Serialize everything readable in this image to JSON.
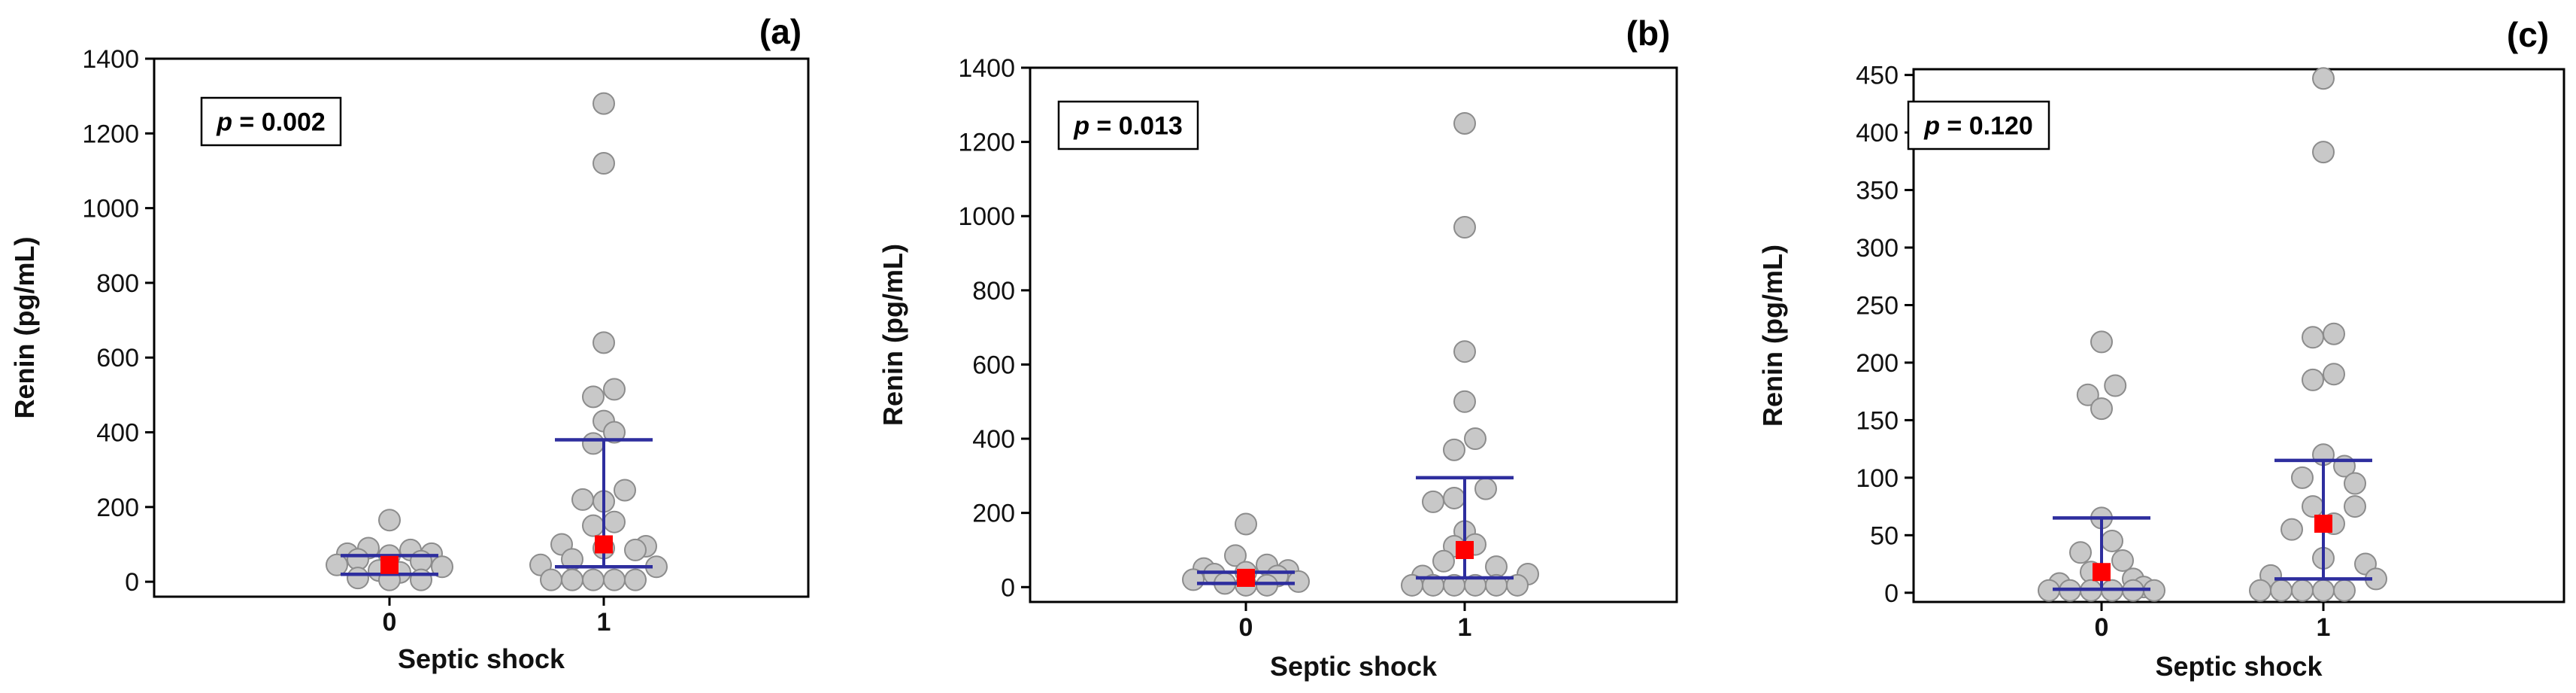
{
  "colors": {
    "point_fill": "#c8c8c8",
    "point_stroke": "#8c8c8c",
    "median_marker": "#ff0000",
    "whisker": "#2e2e9e",
    "axis": "#000000"
  },
  "chart_data": [
    {
      "type": "scatter",
      "panel_label": "(a)",
      "p_prefix": "p",
      "p_value": " = 0.002",
      "xlabel": "Septic shock",
      "ylabel": "Renin (pg/mL)",
      "categories": [
        "0",
        "1"
      ],
      "ylim": [
        -40,
        1400
      ],
      "yticks": [
        0,
        200,
        400,
        600,
        800,
        1000,
        1200,
        1400
      ],
      "groups": [
        {
          "name": "0",
          "median": 45,
          "q1": 20,
          "q3": 70,
          "lower": 20,
          "upper": 70,
          "points": [
            {
              "y": 165,
              "j": 0
            },
            {
              "y": 90,
              "j": -2
            },
            {
              "y": 85,
              "j": 2
            },
            {
              "y": 75,
              "j": -4
            },
            {
              "y": 75,
              "j": 4
            },
            {
              "y": 70,
              "j": 0
            },
            {
              "y": 60,
              "j": -3
            },
            {
              "y": 55,
              "j": 3
            },
            {
              "y": 45,
              "j": -5
            },
            {
              "y": 40,
              "j": 5
            },
            {
              "y": 30,
              "j": -1
            },
            {
              "y": 25,
              "j": 1
            },
            {
              "y": 10,
              "j": -3
            },
            {
              "y": 5,
              "j": 3
            },
            {
              "y": 5,
              "j": 0
            }
          ]
        },
        {
          "name": "1",
          "median": 100,
          "q1": 40,
          "q3": 380,
          "lower": 40,
          "upper": 380,
          "points": [
            {
              "y": 1280,
              "j": 0
            },
            {
              "y": 1120,
              "j": 0
            },
            {
              "y": 640,
              "j": 0
            },
            {
              "y": 515,
              "j": 1
            },
            {
              "y": 495,
              "j": -1
            },
            {
              "y": 430,
              "j": 0
            },
            {
              "y": 400,
              "j": 1
            },
            {
              "y": 370,
              "j": -1
            },
            {
              "y": 245,
              "j": 2
            },
            {
              "y": 220,
              "j": -2
            },
            {
              "y": 215,
              "j": 0
            },
            {
              "y": 160,
              "j": 1
            },
            {
              "y": 150,
              "j": -1
            },
            {
              "y": 100,
              "j": -4
            },
            {
              "y": 95,
              "j": 4
            },
            {
              "y": 90,
              "j": 0
            },
            {
              "y": 85,
              "j": 3
            },
            {
              "y": 60,
              "j": -3
            },
            {
              "y": 45,
              "j": -6
            },
            {
              "y": 40,
              "j": 5
            },
            {
              "y": 5,
              "j": -5
            },
            {
              "y": 5,
              "j": -3
            },
            {
              "y": 5,
              "j": -1
            },
            {
              "y": 5,
              "j": 1
            },
            {
              "y": 5,
              "j": 3
            }
          ]
        }
      ]
    },
    {
      "type": "scatter",
      "panel_label": "(b)",
      "p_prefix": "p",
      "p_value": " = 0.013",
      "xlabel": "Septic shock",
      "ylabel": "Renin (pg/mL)",
      "categories": [
        "0",
        "1"
      ],
      "ylim": [
        -40,
        1400
      ],
      "yticks": [
        0,
        200,
        400,
        600,
        800,
        1000,
        1200,
        1400
      ],
      "groups": [
        {
          "name": "0",
          "median": 25,
          "q1": 10,
          "q3": 40,
          "lower": 10,
          "upper": 40,
          "points": [
            {
              "y": 170,
              "j": 0
            },
            {
              "y": 85,
              "j": -1
            },
            {
              "y": 60,
              "j": 2
            },
            {
              "y": 50,
              "j": -4
            },
            {
              "y": 45,
              "j": 4
            },
            {
              "y": 40,
              "j": 0
            },
            {
              "y": 35,
              "j": -3
            },
            {
              "y": 30,
              "j": 3
            },
            {
              "y": 20,
              "j": -5
            },
            {
              "y": 15,
              "j": 5
            },
            {
              "y": 10,
              "j": -2
            },
            {
              "y": 5,
              "j": 2
            },
            {
              "y": 5,
              "j": 0
            }
          ]
        },
        {
          "name": "1",
          "median": 100,
          "q1": 25,
          "q3": 295,
          "lower": 25,
          "upper": 295,
          "points": [
            {
              "y": 1250,
              "j": 0
            },
            {
              "y": 970,
              "j": 0
            },
            {
              "y": 635,
              "j": 0
            },
            {
              "y": 500,
              "j": 0
            },
            {
              "y": 400,
              "j": 1
            },
            {
              "y": 370,
              "j": -1
            },
            {
              "y": 265,
              "j": 2
            },
            {
              "y": 240,
              "j": -1
            },
            {
              "y": 230,
              "j": -3
            },
            {
              "y": 150,
              "j": 0
            },
            {
              "y": 115,
              "j": 1
            },
            {
              "y": 110,
              "j": -1
            },
            {
              "y": 70,
              "j": -2
            },
            {
              "y": 55,
              "j": 3
            },
            {
              "y": 35,
              "j": 6
            },
            {
              "y": 30,
              "j": -4
            },
            {
              "y": 5,
              "j": -5
            },
            {
              "y": 5,
              "j": -3
            },
            {
              "y": 5,
              "j": -1
            },
            {
              "y": 5,
              "j": 1
            },
            {
              "y": 5,
              "j": 3
            },
            {
              "y": 5,
              "j": 5
            }
          ]
        }
      ]
    },
    {
      "type": "scatter",
      "panel_label": "(c)",
      "p_prefix": "p",
      "p_value": " = 0.120",
      "xlabel": "Septic shock",
      "ylabel": "Renin (pg/mL)",
      "categories": [
        "0",
        "1"
      ],
      "ylim": [
        -8,
        455
      ],
      "yticks": [
        0,
        50,
        100,
        150,
        200,
        250,
        300,
        350,
        400,
        450
      ],
      "groups": [
        {
          "name": "0",
          "median": 18,
          "q1": 3,
          "q3": 65,
          "lower": 3,
          "upper": 65,
          "points": [
            {
              "y": 218,
              "j": 0
            },
            {
              "y": 180,
              "j": 1.3
            },
            {
              "y": 172,
              "j": -1.3
            },
            {
              "y": 160,
              "j": 0
            },
            {
              "y": 65,
              "j": 0
            },
            {
              "y": 45,
              "j": 1
            },
            {
              "y": 35,
              "j": -2
            },
            {
              "y": 28,
              "j": 2
            },
            {
              "y": 18,
              "j": -1
            },
            {
              "y": 12,
              "j": 3
            },
            {
              "y": 8,
              "j": -4
            },
            {
              "y": 5,
              "j": 4
            },
            {
              "y": 2,
              "j": -5
            },
            {
              "y": 2,
              "j": -3
            },
            {
              "y": 2,
              "j": -1
            },
            {
              "y": 2,
              "j": 1
            },
            {
              "y": 2,
              "j": 3
            },
            {
              "y": 2,
              "j": 5
            }
          ]
        },
        {
          "name": "1",
          "median": 60,
          "q1": 12,
          "q3": 115,
          "lower": 12,
          "upper": 115,
          "points": [
            {
              "y": 447,
              "j": 0
            },
            {
              "y": 383,
              "j": 0
            },
            {
              "y": 225,
              "j": 1
            },
            {
              "y": 222,
              "j": -1
            },
            {
              "y": 190,
              "j": 1
            },
            {
              "y": 185,
              "j": -1
            },
            {
              "y": 120,
              "j": 0
            },
            {
              "y": 110,
              "j": 2
            },
            {
              "y": 100,
              "j": -2
            },
            {
              "y": 95,
              "j": 3
            },
            {
              "y": 75,
              "j": -1
            },
            {
              "y": 75,
              "j": 3
            },
            {
              "y": 60,
              "j": 1
            },
            {
              "y": 55,
              "j": -3
            },
            {
              "y": 30,
              "j": 0
            },
            {
              "y": 25,
              "j": 4
            },
            {
              "y": 15,
              "j": -5
            },
            {
              "y": 12,
              "j": 5
            },
            {
              "y": 2,
              "j": -6
            },
            {
              "y": 2,
              "j": -4
            },
            {
              "y": 2,
              "j": -2
            },
            {
              "y": 2,
              "j": 0
            },
            {
              "y": 2,
              "j": 2
            }
          ]
        }
      ]
    }
  ]
}
